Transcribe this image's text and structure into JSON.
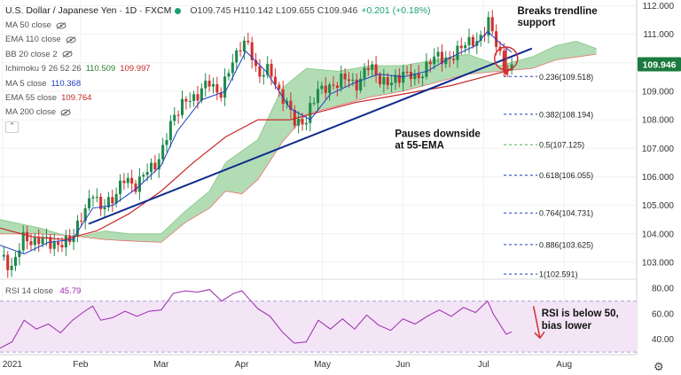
{
  "legend": {
    "title": "U.S. Dollar / Japanese Yen · 1D · FXCM",
    "ohlc": "O109.745 H110.142 L109.655 C109.946",
    "change": "+0.201 (+0.18%)",
    "indicators": [
      {
        "label": "MA 50 close",
        "values": [],
        "hidden": true
      },
      {
        "label": "EMA 110 close",
        "values": [],
        "hidden": true
      },
      {
        "label": "BB 20 close 2",
        "values": [],
        "hidden": true
      },
      {
        "label": "Ichimoku 9 26 52 26",
        "values": [
          {
            "v": "110.509",
            "color": "#2e7d32"
          },
          {
            "v": "109.997",
            "color": "#c62828"
          }
        ],
        "hidden": false
      },
      {
        "label": "MA 5 close",
        "values": [
          {
            "v": "110.368",
            "color": "#1e3fbf"
          }
        ],
        "hidden": false
      },
      {
        "label": "EMA 55 close",
        "values": [
          {
            "v": "109.764",
            "color": "#c62828"
          }
        ],
        "hidden": false
      },
      {
        "label": "MA 200 close",
        "values": [],
        "hidden": true
      }
    ],
    "collapse_glyph": "⌃"
  },
  "rsi_legend": {
    "label": "RSI 14 close",
    "value": "45.79"
  },
  "colors": {
    "up": "#1e8a4c",
    "down": "#d32f2f",
    "cloud_bull": "#a5d6a7",
    "cloud_bear": "#ef9a9a",
    "ma5": "#1e3fbf",
    "ema55": "#c62828",
    "trend": "#0d2b8c",
    "rsi": "#9c27b0",
    "rsi_band": "#f3e5f5",
    "fib": "#1e3fbf",
    "fib_half": "#4caf50"
  },
  "chart_data": {
    "type": "candlestick",
    "title": "U.S. Dollar / Japanese Yen · 1D · FXCM",
    "price_axis": {
      "min": 102.5,
      "max": 112.2,
      "ticks": [
        103.0,
        104.0,
        105.0,
        106.0,
        107.0,
        108.0,
        109.0,
        110.0,
        111.0,
        112.0
      ],
      "tick_labels": [
        "103.000",
        "104.000",
        "105.000",
        "106.000",
        "107.000",
        "108.000",
        "109.000",
        "110.000",
        "111.000",
        "112.000"
      ]
    },
    "current_price": {
      "value": 109.946,
      "label": "109.946"
    },
    "time_axis": {
      "start_month": 0,
      "end_month": 7.9,
      "labels": [
        {
          "m": 0.03,
          "label": "2021"
        },
        {
          "m": 1.0,
          "label": "Feb"
        },
        {
          "m": 2.0,
          "label": "Mar"
        },
        {
          "m": 3.0,
          "label": "Apr"
        },
        {
          "m": 4.0,
          "label": "May"
        },
        {
          "m": 5.0,
          "label": "Jun"
        },
        {
          "m": 6.0,
          "label": "Jul"
        },
        {
          "m": 7.0,
          "label": "Aug"
        }
      ]
    },
    "price_path": [
      [
        0.0,
        103.2
      ],
      [
        0.15,
        102.85
      ],
      [
        0.3,
        103.9
      ],
      [
        0.45,
        103.7
      ],
      [
        0.6,
        103.8
      ],
      [
        0.75,
        103.5
      ],
      [
        0.9,
        104.0
      ],
      [
        1.05,
        104.7
      ],
      [
        1.15,
        105.6
      ],
      [
        1.25,
        104.8
      ],
      [
        1.4,
        105.3
      ],
      [
        1.55,
        105.9
      ],
      [
        1.7,
        105.7
      ],
      [
        1.85,
        106.3
      ],
      [
        2.0,
        106.7
      ],
      [
        2.15,
        108.2
      ],
      [
        2.3,
        108.6
      ],
      [
        2.45,
        108.9
      ],
      [
        2.6,
        109.3
      ],
      [
        2.75,
        108.9
      ],
      [
        2.9,
        110.2
      ],
      [
        3.0,
        110.7
      ],
      [
        3.1,
        110.5
      ],
      [
        3.2,
        109.6
      ],
      [
        3.35,
        109.7
      ],
      [
        3.5,
        108.8
      ],
      [
        3.65,
        108.0
      ],
      [
        3.8,
        107.9
      ],
      [
        3.95,
        109.2
      ],
      [
        4.1,
        109.0
      ],
      [
        4.25,
        109.6
      ],
      [
        4.4,
        109.1
      ],
      [
        4.55,
        109.9
      ],
      [
        4.7,
        109.5
      ],
      [
        4.85,
        109.2
      ],
      [
        5.0,
        109.7
      ],
      [
        5.15,
        109.4
      ],
      [
        5.3,
        109.9
      ],
      [
        5.45,
        110.3
      ],
      [
        5.6,
        110.0
      ],
      [
        5.75,
        110.8
      ],
      [
        5.9,
        110.6
      ],
      [
        6.0,
        111.1
      ],
      [
        6.05,
        111.6
      ],
      [
        6.12,
        110.9
      ],
      [
        6.2,
        110.3
      ],
      [
        6.28,
        109.8
      ],
      [
        6.35,
        109.95
      ]
    ],
    "ma5_path": [
      [
        0.0,
        103.6
      ],
      [
        0.3,
        103.3
      ],
      [
        0.6,
        103.7
      ],
      [
        0.9,
        103.8
      ],
      [
        1.15,
        104.9
      ],
      [
        1.4,
        105.0
      ],
      [
        1.7,
        105.6
      ],
      [
        2.0,
        106.4
      ],
      [
        2.2,
        107.6
      ],
      [
        2.5,
        108.7
      ],
      [
        2.8,
        109.0
      ],
      [
        3.05,
        110.4
      ],
      [
        3.3,
        109.7
      ],
      [
        3.6,
        108.4
      ],
      [
        3.85,
        108.0
      ],
      [
        4.1,
        108.9
      ],
      [
        4.4,
        109.3
      ],
      [
        4.7,
        109.6
      ],
      [
        5.0,
        109.5
      ],
      [
        5.3,
        109.7
      ],
      [
        5.6,
        110.2
      ],
      [
        5.9,
        110.6
      ],
      [
        6.05,
        111.1
      ],
      [
        6.2,
        110.7
      ],
      [
        6.35,
        110.37
      ]
    ],
    "ema55_path": [
      [
        0.0,
        104.2
      ],
      [
        0.4,
        103.9
      ],
      [
        0.8,
        103.8
      ],
      [
        1.2,
        104.1
      ],
      [
        1.6,
        104.7
      ],
      [
        2.0,
        105.5
      ],
      [
        2.4,
        106.5
      ],
      [
        2.8,
        107.4
      ],
      [
        3.2,
        108.0
      ],
      [
        3.6,
        108.0
      ],
      [
        4.0,
        108.3
      ],
      [
        4.4,
        108.6
      ],
      [
        4.8,
        108.8
      ],
      [
        5.2,
        109.0
      ],
      [
        5.6,
        109.2
      ],
      [
        6.0,
        109.5
      ],
      [
        6.35,
        109.76
      ]
    ],
    "cloud": {
      "span_a": [
        [
          0.0,
          104.5
        ],
        [
          0.5,
          104.2
        ],
        [
          0.8,
          103.95
        ],
        [
          1.0,
          103.9
        ],
        [
          1.3,
          104.1
        ],
        [
          1.6,
          104.0
        ],
        [
          2.0,
          104.0
        ],
        [
          2.3,
          104.8
        ],
        [
          2.6,
          105.5
        ],
        [
          2.8,
          106.5
        ],
        [
          3.0,
          106.9
        ],
        [
          3.2,
          107.3
        ],
        [
          3.5,
          109.1
        ],
        [
          3.8,
          109.8
        ],
        [
          4.2,
          109.7
        ],
        [
          4.6,
          109.9
        ],
        [
          5.0,
          109.9
        ],
        [
          5.4,
          110.1
        ],
        [
          5.8,
          110.3
        ],
        [
          6.2,
          109.9
        ],
        [
          6.6,
          110.2
        ],
        [
          6.9,
          110.6
        ],
        [
          7.15,
          110.75
        ],
        [
          7.4,
          110.5
        ]
      ],
      "span_b": [
        [
          0.0,
          104.0
        ],
        [
          0.5,
          104.0
        ],
        [
          0.8,
          103.95
        ],
        [
          1.0,
          103.9
        ],
        [
          1.3,
          103.8
        ],
        [
          1.6,
          103.75
        ],
        [
          2.0,
          103.7
        ],
        [
          2.3,
          104.4
        ],
        [
          2.6,
          104.9
        ],
        [
          2.8,
          105.5
        ],
        [
          3.0,
          105.4
        ],
        [
          3.2,
          105.9
        ],
        [
          3.5,
          107.2
        ],
        [
          3.8,
          108.2
        ],
        [
          4.2,
          108.5
        ],
        [
          4.6,
          108.8
        ],
        [
          5.0,
          109.0
        ],
        [
          5.4,
          109.3
        ],
        [
          5.8,
          109.6
        ],
        [
          6.2,
          109.7
        ],
        [
          6.6,
          109.8
        ],
        [
          6.9,
          110.1
        ],
        [
          7.15,
          110.2
        ],
        [
          7.4,
          110.3
        ]
      ]
    },
    "trendline": {
      "from": [
        1.1,
        104.35
      ],
      "to": [
        6.6,
        110.5
      ]
    },
    "fibonacci": [
      {
        "level": 109.518,
        "label": "0.236(109.518)"
      },
      {
        "level": 108.194,
        "label": "0.382(108.194)"
      },
      {
        "level": 107.125,
        "label": "0.5(107.125)"
      },
      {
        "level": 106.055,
        "label": "0.618(106.055)"
      },
      {
        "level": 104.731,
        "label": "0.764(104.731)"
      },
      {
        "level": 103.625,
        "label": "0.886(103.625)"
      },
      {
        "level": 102.591,
        "label": "1(102.591)"
      }
    ],
    "fib_x_start": 6.25,
    "annotations": [
      {
        "text": "Breaks trendline",
        "m": 6.42,
        "price": 111.7
      },
      {
        "text": "support",
        "m": 6.42,
        "price": 111.3
      },
      {
        "text": "Pauses downside",
        "m": 4.9,
        "price": 107.4
      },
      {
        "text": "at 55-EMA",
        "m": 4.9,
        "price": 107.0
      }
    ],
    "circle_marker": {
      "m": 6.28,
      "price": 110.15
    },
    "down_arrow": {
      "from": [
        6.28,
        110.5
      ],
      "to": [
        6.28,
        109.6
      ]
    },
    "rsi": {
      "axis": {
        "min": 28,
        "max": 85,
        "ticks": [
          40,
          60,
          80
        ],
        "tick_labels": [
          "40.00",
          "60.00",
          "80.00"
        ]
      },
      "band": [
        30,
        70
      ],
      "path": [
        [
          0.0,
          33
        ],
        [
          0.15,
          38
        ],
        [
          0.3,
          55
        ],
        [
          0.45,
          48
        ],
        [
          0.6,
          52
        ],
        [
          0.75,
          45
        ],
        [
          0.9,
          55
        ],
        [
          1.05,
          62
        ],
        [
          1.15,
          66
        ],
        [
          1.25,
          55
        ],
        [
          1.4,
          57
        ],
        [
          1.55,
          62
        ],
        [
          1.7,
          58
        ],
        [
          1.85,
          62
        ],
        [
          2.0,
          63
        ],
        [
          2.15,
          76
        ],
        [
          2.3,
          78
        ],
        [
          2.45,
          77
        ],
        [
          2.6,
          79
        ],
        [
          2.75,
          70
        ],
        [
          2.9,
          76
        ],
        [
          3.0,
          78
        ],
        [
          3.1,
          71
        ],
        [
          3.2,
          64
        ],
        [
          3.35,
          58
        ],
        [
          3.5,
          46
        ],
        [
          3.65,
          37
        ],
        [
          3.8,
          38
        ],
        [
          3.95,
          55
        ],
        [
          4.1,
          48
        ],
        [
          4.25,
          56
        ],
        [
          4.4,
          48
        ],
        [
          4.55,
          59
        ],
        [
          4.7,
          51
        ],
        [
          4.85,
          47
        ],
        [
          5.0,
          56
        ],
        [
          5.15,
          52
        ],
        [
          5.3,
          58
        ],
        [
          5.45,
          63
        ],
        [
          5.6,
          58
        ],
        [
          5.75,
          65
        ],
        [
          5.9,
          61
        ],
        [
          6.0,
          67
        ],
        [
          6.05,
          70
        ],
        [
          6.12,
          60
        ],
        [
          6.2,
          52
        ],
        [
          6.28,
          44
        ],
        [
          6.35,
          45.8
        ]
      ],
      "arrow": {
        "from": [
          6.62,
          66
        ],
        "to": [
          6.7,
          41
        ]
      },
      "annotations": [
        {
          "text": "RSI is below 50,",
          "m": 6.72,
          "value": 58
        },
        {
          "text": "bias lower",
          "m": 6.72,
          "value": 48
        }
      ]
    }
  }
}
